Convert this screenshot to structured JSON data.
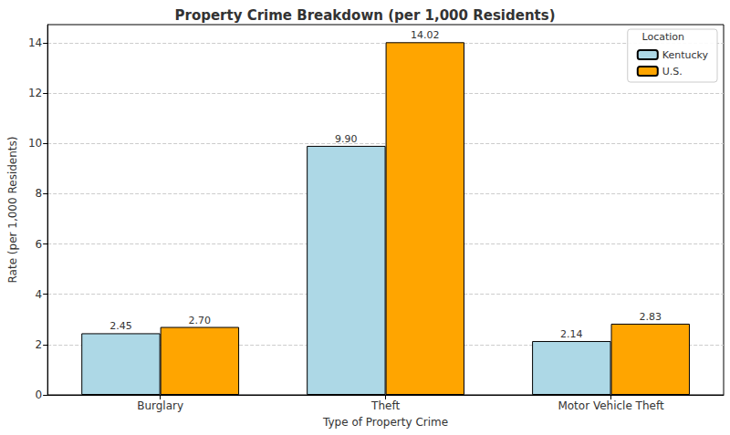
{
  "chart_data": {
    "type": "bar",
    "title": "Property Crime Breakdown (per 1,000 Residents)",
    "x_label": "Type of Property Crime",
    "y_label": "Rate (per 1,000 Residents)",
    "categories": [
      "Burglary",
      "Theft",
      "Motor Vehicle Theft"
    ],
    "series": [
      {
        "name": "Kentucky",
        "color": "#add8e6",
        "values": [
          2.45,
          9.9,
          2.14
        ],
        "value_labels": [
          "2.45",
          "9.90",
          "2.14"
        ]
      },
      {
        "name": "U.S.",
        "color": "#ffa500",
        "values": [
          2.7,
          14.02,
          2.83
        ],
        "value_labels": [
          "2.70",
          "14.02",
          "2.83"
        ]
      }
    ],
    "ylim": [
      0,
      14.72
    ],
    "yticks": [
      0,
      2,
      4,
      6,
      8,
      10,
      12,
      14
    ],
    "grid": true,
    "data_labels": true,
    "legend": "upper right",
    "legend_title": "Location"
  }
}
